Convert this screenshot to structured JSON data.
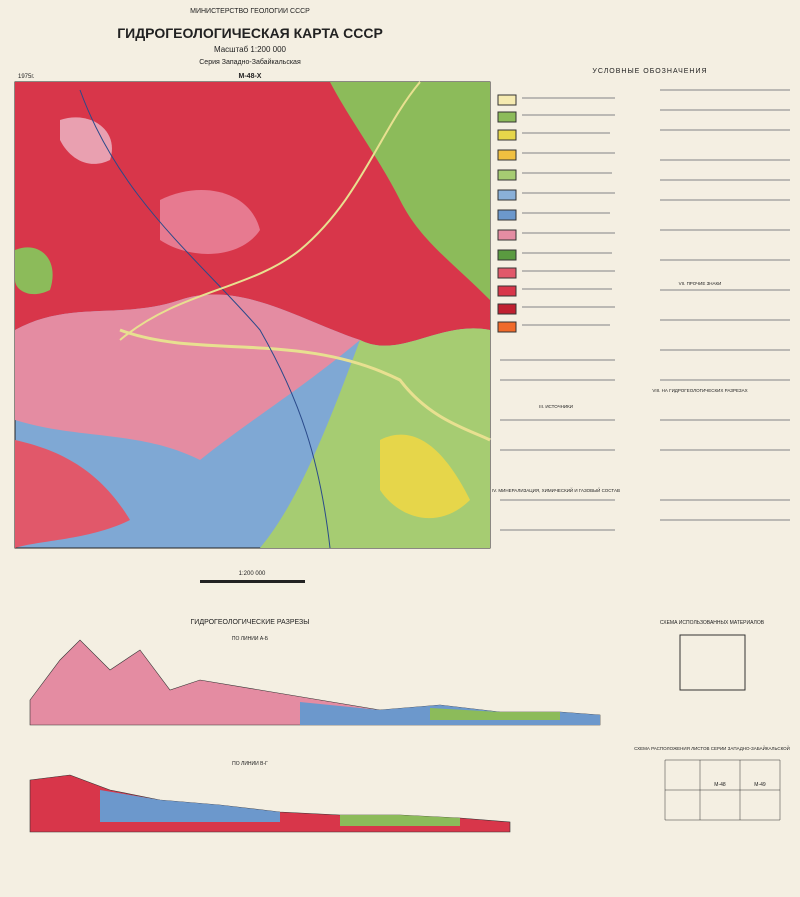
{
  "header": {
    "ministry": "МИНИСТЕРСТВО ГЕОЛОГИИ СССР",
    "title": "ГИДРОГЕОЛОГИЧЕСКАЯ КАРТА СССР",
    "scale": "Масштаб 1:200 000",
    "series": "Серия Западно-Забайкальская",
    "sheet": "М-48-Х",
    "year": "1975г."
  },
  "map": {
    "scale": "1:200 000"
  },
  "legend": {
    "title": "УСЛОВНЫЕ ОБОЗНАЧЕНИЯ",
    "sections": [
      "III. ИСТОЧНИКИ",
      "IV. МИНЕРАЛИЗАЦИЯ, ХИМИЧЕСКИЙ И ГАЗОВЫЙ СОСТАВ",
      "VII. ПРОЧИЕ ЗНАКИ",
      "VIII. НА ГИДРОГЕОЛОГИЧЕСКИХ РАЗРЕЗАХ"
    ]
  },
  "sections": {
    "title": "ГИДРОГЕОЛОГИЧЕСКИЕ РАЗРЕЗЫ",
    "lines": [
      "ПО ЛИНИИ А-Б",
      "ПО ЛИНИИ В-Г"
    ]
  },
  "schemes": {
    "materials": "СХЕМА ИСПОЛЬЗОВАННЫХ МАТЕРИАЛОВ",
    "layout": "СХЕМА РАСПОЛОЖЕНИЯ ЛИСТОВ СЕРИИ ЗАПАДНО-ЗАБАЙКАЛЬСКОЙ",
    "sheets": [
      "M-48",
      "M-49"
    ]
  }
}
